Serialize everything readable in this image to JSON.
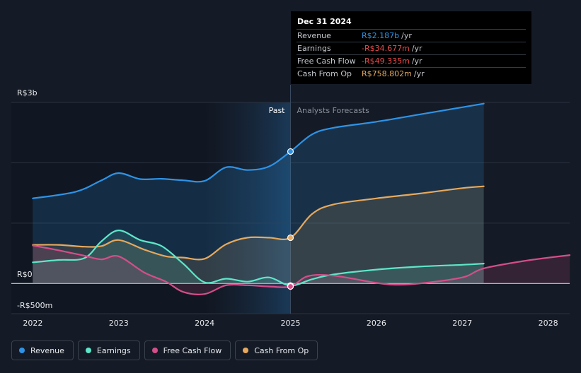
{
  "chart_data": {
    "type": "line",
    "title": "",
    "y_axis": {
      "min_label": "-R$500m",
      "zero_label": "R$0",
      "max_label": "R$3b",
      "ylim": [
        -500,
        3000
      ],
      "unit": "R$m"
    },
    "x_ticks": [
      "2022",
      "2023",
      "2024",
      "2025",
      "2026",
      "2027",
      "2028"
    ],
    "x_tick_values": [
      2022,
      2023,
      2024,
      2025,
      2026,
      2027,
      2028
    ],
    "xlim": [
      2021.75,
      2028.25
    ],
    "divider_x": 2025.0,
    "past_label": "Past",
    "forecast_label": "Analysts Forecasts",
    "series": [
      {
        "name": "Revenue",
        "color": "#2e93e6",
        "x": [
          2022.0,
          2022.5,
          2022.8,
          2023.0,
          2023.25,
          2023.5,
          2023.75,
          2024.0,
          2024.25,
          2024.5,
          2024.75,
          2025.0,
          2025.25,
          2025.5,
          2026.0,
          2026.5,
          2027.0,
          2027.25
        ],
        "y": [
          1410,
          1520,
          1710,
          1830,
          1730,
          1735,
          1710,
          1700,
          1925,
          1880,
          1940,
          2187,
          2470,
          2580,
          2680,
          2800,
          2920,
          2980
        ]
      },
      {
        "name": "Earnings",
        "color": "#5ee6c9",
        "x": [
          2022.0,
          2022.3,
          2022.6,
          2022.8,
          2023.0,
          2023.25,
          2023.5,
          2023.75,
          2024.0,
          2024.25,
          2024.5,
          2024.75,
          2025.0,
          2025.25,
          2025.5,
          2026.0,
          2026.5,
          2027.0,
          2027.25
        ],
        "y": [
          350,
          390,
          420,
          700,
          880,
          720,
          620,
          330,
          20,
          80,
          30,
          100,
          -35,
          70,
          150,
          230,
          280,
          310,
          330
        ]
      },
      {
        "name": "Free Cash Flow",
        "color": "#d44e8a",
        "x": [
          2022.0,
          2022.3,
          2022.6,
          2022.8,
          2023.0,
          2023.3,
          2023.55,
          2023.75,
          2024.0,
          2024.25,
          2024.5,
          2024.75,
          2025.0,
          2025.2,
          2025.5,
          2026.0,
          2026.25,
          2026.5,
          2027.0,
          2027.25,
          2027.75,
          2028.25
        ],
        "y": [
          630,
          550,
          460,
          400,
          450,
          180,
          30,
          -140,
          -175,
          -30,
          -30,
          -50,
          -49,
          120,
          130,
          10,
          -20,
          0,
          100,
          250,
          380,
          470
        ]
      },
      {
        "name": "Cash From Op",
        "color": "#e6a95e",
        "x": [
          2022.0,
          2022.3,
          2022.6,
          2022.8,
          2023.0,
          2023.3,
          2023.55,
          2023.75,
          2024.0,
          2024.25,
          2024.5,
          2024.75,
          2025.0,
          2025.25,
          2025.5,
          2026.0,
          2026.5,
          2027.0,
          2027.25
        ],
        "y": [
          640,
          640,
          610,
          620,
          720,
          560,
          450,
          430,
          410,
          650,
          760,
          760,
          759,
          1150,
          1310,
          1410,
          1490,
          1580,
          1610
        ]
      }
    ]
  },
  "tooltip": {
    "date": "Dec 31 2024",
    "rows": [
      {
        "label": "Revenue",
        "value": "R$2.187b",
        "unit": "/yr",
        "color": "#2e93e6"
      },
      {
        "label": "Earnings",
        "value": "-R$34.677m",
        "unit": "/yr",
        "color": "#e84a4a"
      },
      {
        "label": "Free Cash Flow",
        "value": "-R$49.335m",
        "unit": "/yr",
        "color": "#e84a4a"
      },
      {
        "label": "Cash From Op",
        "value": "R$758.802m",
        "unit": "/yr",
        "color": "#e6a95e"
      }
    ]
  },
  "legend": [
    {
      "label": "Revenue",
      "color": "#2e93e6"
    },
    {
      "label": "Earnings",
      "color": "#5ee6c9"
    },
    {
      "label": "Free Cash Flow",
      "color": "#d44e8a"
    },
    {
      "label": "Cash From Op",
      "color": "#e6a95e"
    }
  ]
}
